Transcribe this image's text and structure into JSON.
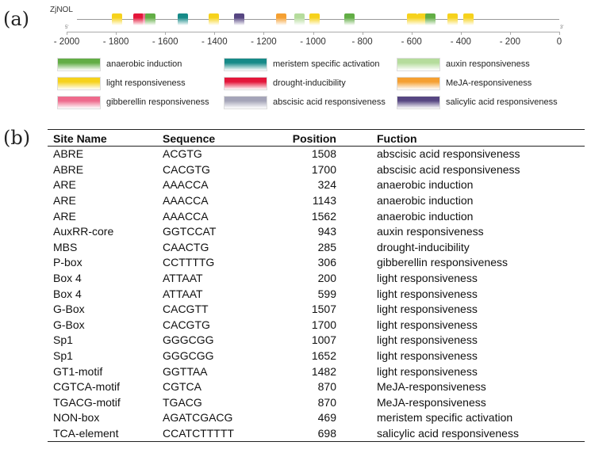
{
  "panel_a": {
    "label": "(a)",
    "gene": "ZjNOL",
    "ruler": {
      "start_label": "5'",
      "end_label": "3'",
      "ticks": [
        "- 2000",
        "- 1800",
        "- 1600",
        "- 1400",
        "- 1200",
        "- 1000",
        "- 800",
        "- 600",
        "- 400",
        "- 200",
        "0"
      ],
      "tick_values": [
        -2000,
        -1800,
        -1600,
        -1400,
        -1200,
        -1000,
        -800,
        -600,
        -400,
        -200,
        0
      ]
    },
    "motifs": [
      {
        "type": "light",
        "pos": -1797
      },
      {
        "type": "drought",
        "pos": -1710
      },
      {
        "type": "gibberellin",
        "pos": -1671
      },
      {
        "type": "anaerobic",
        "pos": -1660
      },
      {
        "type": "meristem",
        "pos": -1527
      },
      {
        "type": "light",
        "pos": -1401
      },
      {
        "type": "salicylic",
        "pos": -1301
      },
      {
        "type": "meja",
        "pos": -1130
      },
      {
        "type": "auxin",
        "pos": -1056
      },
      {
        "type": "light",
        "pos": -992
      },
      {
        "type": "anaerobic",
        "pos": -853
      },
      {
        "type": "light",
        "pos": -599
      },
      {
        "type": "light",
        "pos": -557
      },
      {
        "type": "anaerobic",
        "pos": -522
      },
      {
        "type": "light",
        "pos": -432
      },
      {
        "type": "light",
        "pos": -370
      }
    ],
    "legend": [
      {
        "key": "anaerobic",
        "label": "anaerobic induction",
        "color": "#62ad45"
      },
      {
        "key": "meristem",
        "label": "meristem specific activation",
        "color": "#168a88"
      },
      {
        "key": "auxin",
        "label": "auxin responsiveness",
        "color": "#b5dc9c"
      },
      {
        "key": "light",
        "label": "light responsiveness",
        "color": "#f6d21c"
      },
      {
        "key": "drought",
        "label": "drought-inducibility",
        "color": "#e4163a"
      },
      {
        "key": "meja",
        "label": "MeJA-responsiveness",
        "color": "#f5a032"
      },
      {
        "key": "gibberellin",
        "label": "gibberellin responsiveness",
        "color": "#ee6a8c"
      },
      {
        "key": "abscisic",
        "label": "abscisic acid responsiveness",
        "color": "#a4a4b8"
      },
      {
        "key": "salicylic",
        "label": "salicylic acid responsiveness",
        "color": "#564682"
      }
    ]
  },
  "panel_b": {
    "label": "(b)",
    "headers": [
      "Site Name",
      "Sequence",
      "Position",
      "Fuction"
    ],
    "rows": [
      [
        "ABRE",
        "ACGTG",
        "1508",
        "abscisic acid responsiveness"
      ],
      [
        "ABRE",
        "CACGTG",
        "1700",
        "abscisic acid responsiveness"
      ],
      [
        "ARE",
        "AAACCA",
        "324",
        "anaerobic induction"
      ],
      [
        "ARE",
        "AAACCA",
        "1143",
        "anaerobic induction"
      ],
      [
        "ARE",
        "AAACCA",
        "1562",
        "anaerobic induction"
      ],
      [
        "AuxRR-core",
        "GGTCCAT",
        "943",
        "auxin responsiveness"
      ],
      [
        "MBS",
        "CAACTG",
        "285",
        "drought-inducibility"
      ],
      [
        "P-box",
        "CCTTTTG",
        "306",
        "gibberellin responsiveness"
      ],
      [
        "Box 4",
        "ATTAAT",
        "200",
        "light responsiveness"
      ],
      [
        "Box 4",
        "ATTAAT",
        "599",
        "light responsiveness"
      ],
      [
        "G-Box",
        "CACGTT",
        "1507",
        "light responsiveness"
      ],
      [
        "G-Box",
        "CACGTG",
        "1700",
        "light responsiveness"
      ],
      [
        "Sp1",
        "GGGCGG",
        "1007",
        "light responsiveness"
      ],
      [
        "Sp1",
        "GGGCGG",
        "1652",
        "light responsiveness"
      ],
      [
        "GT1-motif",
        "GGTTAA",
        "1482",
        "light responsiveness"
      ],
      [
        "CGTCA-motif",
        "CGTCA",
        "870",
        "MeJA-responsiveness"
      ],
      [
        "TGACG-motif",
        "TGACG",
        "870",
        "MeJA-responsiveness"
      ],
      [
        "NON-box",
        "AGATCGACG",
        "469",
        "meristem specific activation"
      ],
      [
        "TCA-element",
        "CCATCTTTTT",
        "698",
        "salicylic acid responsiveness"
      ]
    ]
  }
}
